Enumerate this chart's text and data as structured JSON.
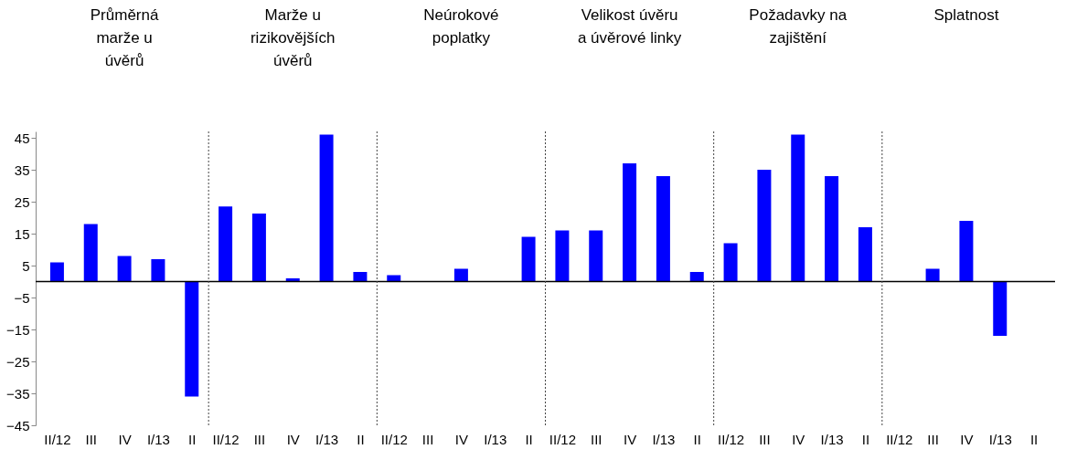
{
  "chart_data": {
    "type": "bar",
    "categories": [
      "II/12",
      "III",
      "IV",
      "I/13",
      "II",
      "II/12",
      "III",
      "IV",
      "I/13",
      "II",
      "II/12",
      "III",
      "IV",
      "I/13",
      "II",
      "II/12",
      "III",
      "IV",
      "I/13",
      "II",
      "II/12",
      "III",
      "IV",
      "I/13",
      "II",
      "II/12",
      "III",
      "IV",
      "I/13",
      "II"
    ],
    "values": [
      6,
      18,
      8,
      7,
      -36,
      23.5,
      21.3,
      1,
      46,
      3,
      2,
      0,
      4,
      0,
      14,
      16,
      16,
      37,
      33,
      3,
      12,
      35,
      46,
      33,
      17,
      0,
      4,
      19,
      -17,
      0
    ],
    "color": "#0000ff",
    "ylim": [
      -45,
      47
    ],
    "yticks": [
      -45,
      -35,
      -25,
      -15,
      -5,
      5,
      15,
      25,
      35,
      45
    ],
    "grid": false,
    "annotations": [
      "Průměrná\nmarže u\núvěrů",
      "Marže  u\nrizikovějších\núvěrů",
      "Neúrokové\npoplatky",
      "Velikost úvěru\na úvěrové linky",
      "Požadavky na\nzajištění",
      "Splatnost"
    ]
  }
}
